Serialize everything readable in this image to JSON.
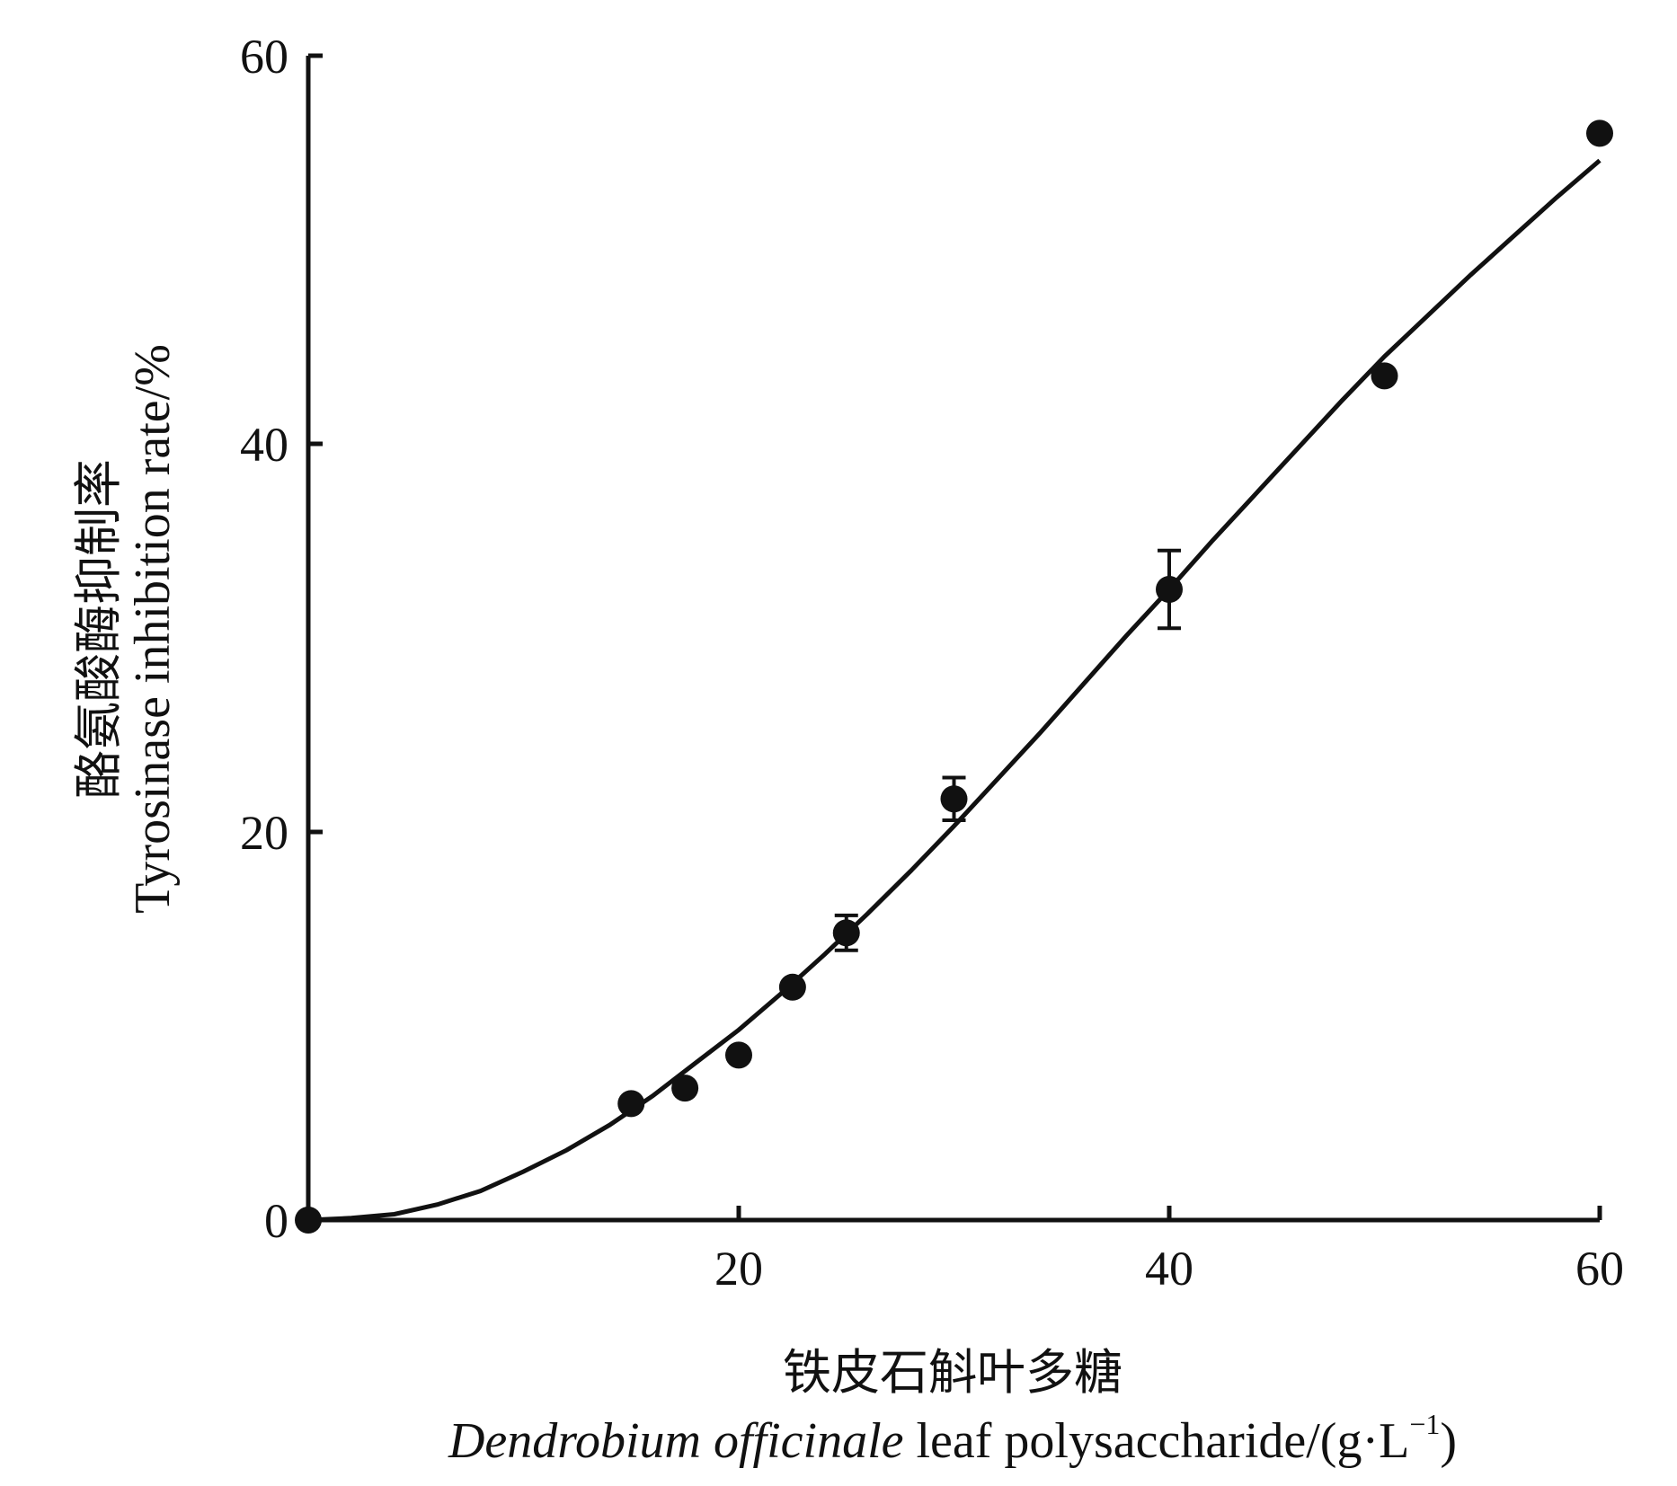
{
  "chart_data": {
    "type": "scatter",
    "xlabel_cn": "铁皮石斛叶多糖",
    "xlabel_en_italic": "Dendrobium officinale",
    "xlabel_en_rest": " leaf polysaccharide/(g·L",
    "xlabel_en_sup": "−1",
    "xlabel_en_close": ")",
    "ylabel_cn": "酪氨酸酶抑制率",
    "ylabel_en": "Tyrosinase inhibition rate/%",
    "xlim": [
      0,
      60
    ],
    "ylim": [
      0,
      60
    ],
    "x_ticks": [
      0,
      20,
      40,
      60
    ],
    "x_tick_labels": [
      "",
      "20",
      "40",
      "60"
    ],
    "y_ticks": [
      0,
      20,
      40,
      60
    ],
    "y_tick_labels": [
      "0",
      "20",
      "40",
      "60"
    ],
    "grid": false,
    "series": [
      {
        "points": [
          {
            "x": 0,
            "y": 0,
            "err": 0
          },
          {
            "x": 15,
            "y": 6.0,
            "err": 0
          },
          {
            "x": 17.5,
            "y": 6.8,
            "err": 0
          },
          {
            "x": 20,
            "y": 8.5,
            "err": 0
          },
          {
            "x": 22.5,
            "y": 12.0,
            "err": 0
          },
          {
            "x": 25,
            "y": 14.8,
            "err": 0.9
          },
          {
            "x": 30,
            "y": 21.7,
            "err": 1.1
          },
          {
            "x": 40,
            "y": 32.5,
            "err": 2.0
          },
          {
            "x": 50,
            "y": 43.5,
            "err": 0
          },
          {
            "x": 60,
            "y": 56.0,
            "err": 0
          }
        ]
      }
    ],
    "fit_curve": {
      "x": [
        0,
        2,
        4,
        6,
        8,
        10,
        12,
        14,
        16,
        18,
        20,
        22,
        24,
        26,
        28,
        30,
        32,
        34,
        36,
        38,
        40,
        42,
        44,
        46,
        48,
        50,
        52,
        54,
        56,
        58,
        60
      ],
      "y": [
        0,
        0.1,
        0.3,
        0.8,
        1.5,
        2.5,
        3.6,
        4.9,
        6.4,
        8.1,
        9.8,
        11.7,
        13.7,
        15.8,
        18.0,
        20.3,
        22.7,
        25.1,
        27.6,
        30.1,
        32.5,
        35.0,
        37.4,
        39.8,
        42.2,
        44.5,
        46.6,
        48.7,
        50.7,
        52.7,
        54.6
      ]
    }
  }
}
